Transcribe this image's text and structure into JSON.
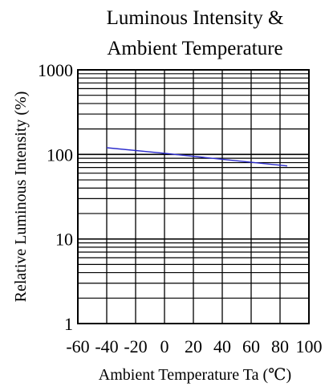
{
  "colors": {
    "grid": "#000000",
    "series_line": "#2b2bcc",
    "background": "#ffffff"
  },
  "chart_data": {
    "type": "line",
    "title": [
      "Luminous Intensity &",
      "Ambient Temperature"
    ],
    "xlabel": "Ambient Temperature Ta (℃)",
    "ylabel": "Relative Luminous Intensity (%)",
    "xlim": [
      -60,
      100
    ],
    "ylim": [
      1,
      1000
    ],
    "yscale": "log",
    "grid": true,
    "x_ticks": [
      "-60",
      "-40",
      "-20",
      "0",
      "20",
      "40",
      "60",
      "80",
      "100"
    ],
    "y_ticks": [
      "1",
      "10",
      "100",
      "1000"
    ],
    "series": [
      {
        "x": [
          -40,
          0,
          85
        ],
        "y": [
          120,
          103,
          73
        ]
      }
    ]
  }
}
